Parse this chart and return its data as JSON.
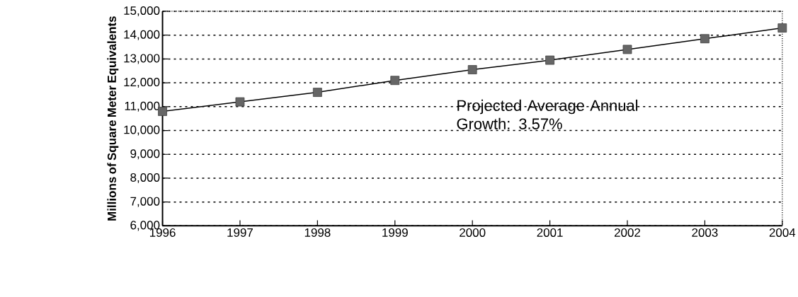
{
  "chart_data": {
    "type": "line",
    "categories": [
      "1996",
      "1997",
      "1998",
      "1999",
      "2000",
      "2001",
      "2002",
      "2003",
      "2004"
    ],
    "series": [
      {
        "color": "#000000",
        "values": [
          10800,
          11200,
          11600,
          12100,
          12550,
          12950,
          13400,
          13850,
          14300
        ]
      }
    ],
    "ylabel": "Millions of Square Meter Equivalents",
    "ylim": [
      6000,
      15000
    ],
    "yticks": [
      {
        "value": 6000,
        "label": "6,000"
      },
      {
        "value": 7000,
        "label": "7,000"
      },
      {
        "value": 8000,
        "label": "8,000"
      },
      {
        "value": 9000,
        "label": "9,000"
      },
      {
        "value": 10000,
        "label": "10,000"
      },
      {
        "value": 11000,
        "label": "11,000"
      },
      {
        "value": 12000,
        "label": "12,000"
      },
      {
        "value": 13000,
        "label": "13,000"
      },
      {
        "value": 14000,
        "label": "14,000"
      },
      {
        "value": 15000,
        "label": "15,000"
      }
    ],
    "grid": "y",
    "marker": "square",
    "line_style": "solid",
    "annotations": [
      "Projected Average Annual Growth: 3.57%"
    ]
  }
}
